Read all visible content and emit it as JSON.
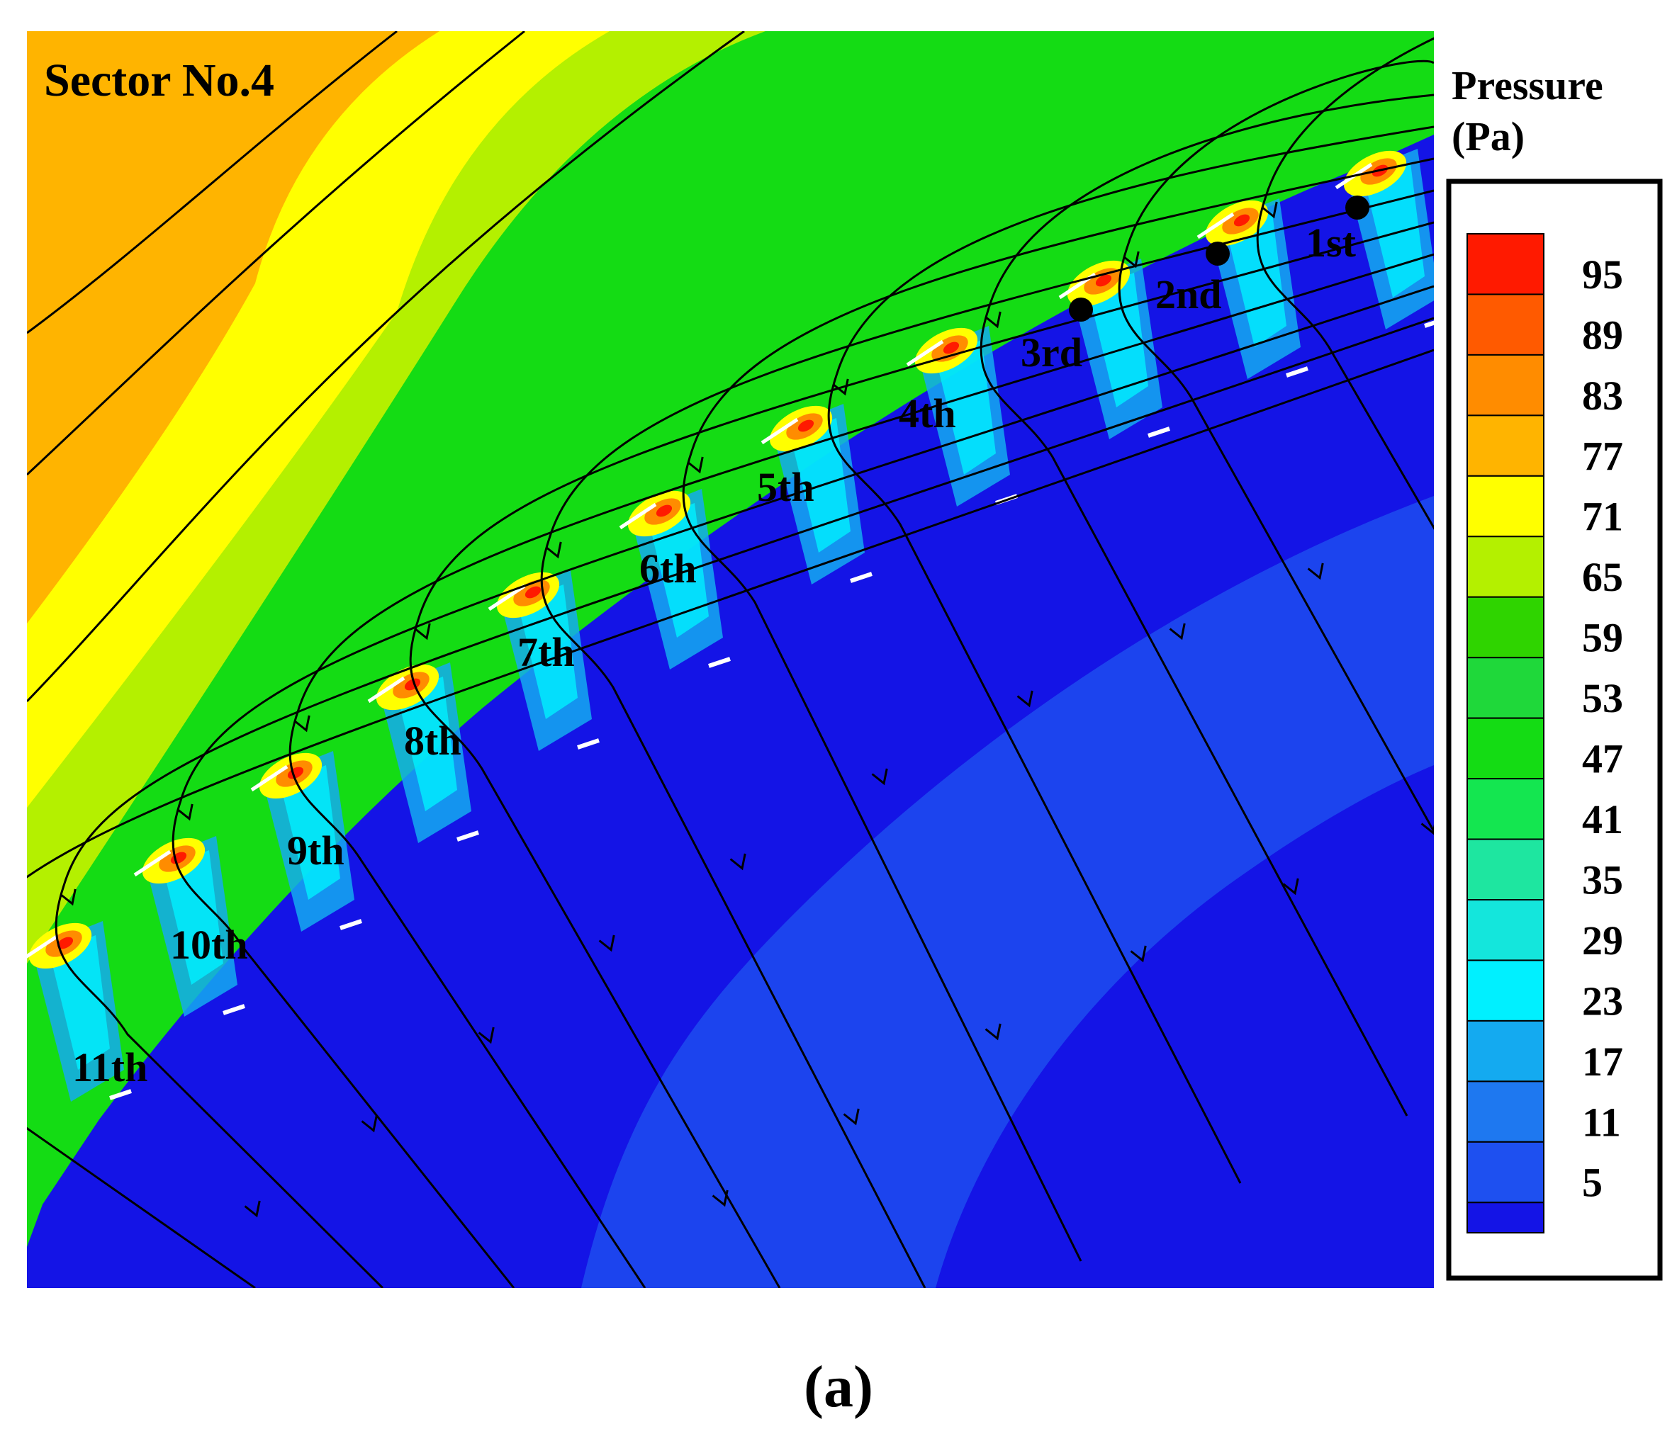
{
  "figure": {
    "sector_label": "Sector No.4",
    "caption": "(a)"
  },
  "legend": {
    "title_line1": "Pressure",
    "title_line2": "(Pa)",
    "levels": [
      {
        "value": "95",
        "color": "#ff1a00"
      },
      {
        "value": "89",
        "color": "#ff5a00"
      },
      {
        "value": "83",
        "color": "#ff8c00"
      },
      {
        "value": "77",
        "color": "#ffb400"
      },
      {
        "value": "71",
        "color": "#ffff00"
      },
      {
        "value": "65",
        "color": "#b4f000"
      },
      {
        "value": "59",
        "color": "#2fd400"
      },
      {
        "value": "53",
        "color": "#1fd83a"
      },
      {
        "value": "47",
        "color": "#14dc14"
      },
      {
        "value": "41",
        "color": "#14e650"
      },
      {
        "value": "35",
        "color": "#1ee6a0"
      },
      {
        "value": "29",
        "color": "#14e6dc"
      },
      {
        "value": "23",
        "color": "#00f0ff"
      },
      {
        "value": "17",
        "color": "#14aaf0"
      },
      {
        "value": "11",
        "color": "#1e78f0"
      },
      {
        "value": "5",
        "color": "#1e50f0"
      }
    ],
    "bottom_color": "#1414e6"
  },
  "blades": [
    {
      "label": "1st",
      "marked": true
    },
    {
      "label": "2nd",
      "marked": true
    },
    {
      "label": "3rd",
      "marked": true
    },
    {
      "label": "4th",
      "marked": false
    },
    {
      "label": "5th",
      "marked": false
    },
    {
      "label": "6th",
      "marked": false
    },
    {
      "label": "7th",
      "marked": false
    },
    {
      "label": "8th",
      "marked": false
    },
    {
      "label": "9th",
      "marked": false
    },
    {
      "label": "10th",
      "marked": false
    },
    {
      "label": "11th",
      "marked": false
    }
  ],
  "colors": {
    "outer_far": "#ffb400",
    "outer_mid": "#ffff00",
    "outer_near": "#b4f000",
    "main_green": "#14dc14",
    "inner_blue": "#1414e6",
    "inner_blue_band": "#1e50f0",
    "streamline": "#000000"
  }
}
